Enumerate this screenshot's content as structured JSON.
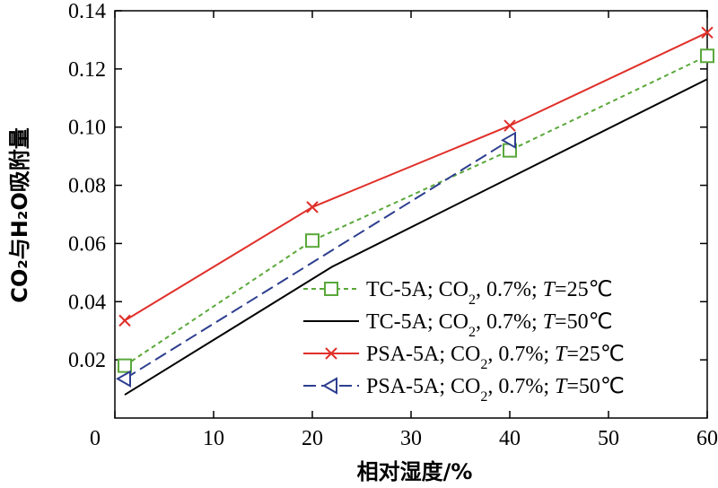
{
  "chart_data": {
    "type": "line",
    "title": "",
    "xlabel": "相对湿度/%",
    "ylabel": "CO₂与H₂O吸附量",
    "xlim": [
      0,
      60
    ],
    "ylim": [
      0,
      0.14
    ],
    "xticks": [
      0,
      10,
      20,
      30,
      40,
      50,
      60
    ],
    "yticks": [
      0.02,
      0.04,
      0.06,
      0.08,
      0.1,
      0.12,
      0.14
    ],
    "ytick_labels": [
      "0.02",
      "0.04",
      "0.06",
      "0.08",
      "0.10",
      "0.12",
      "0.14"
    ],
    "xtick_labels": [
      "0",
      "10",
      "20",
      "30",
      "40",
      "50",
      "60"
    ],
    "legend_position": "bottom-right",
    "series": [
      {
        "name": "TC-5A; CO₂, 0.7%; T=25℃",
        "label_parts": [
          "TC-5A; CO",
          "2",
          ", 0.7%; ",
          "T",
          "=25℃"
        ],
        "color": "#5aa83a",
        "dash": "5,4",
        "marker": "square",
        "x": [
          1,
          20,
          40,
          60
        ],
        "y": [
          0.018,
          0.061,
          0.092,
          0.1245
        ]
      },
      {
        "name": "TC-5A; CO₂, 0.7%; T=50℃",
        "label_parts": [
          "TC-5A; CO",
          "2",
          ", 0.7%; ",
          "T",
          "=50℃"
        ],
        "color": "#000000",
        "dash": "",
        "marker": "none",
        "x": [
          1,
          22,
          60
        ],
        "y": [
          0.008,
          0.052,
          0.1165
        ]
      },
      {
        "name": "PSA-5A; CO₂, 0.7%; T=25℃",
        "label_parts": [
          "PSA-5A; CO",
          "2",
          ", 0.7%; ",
          "T",
          "=25℃"
        ],
        "color": "#e0302a",
        "dash": "",
        "marker": "x",
        "x": [
          1,
          20,
          40,
          60
        ],
        "y": [
          0.0335,
          0.0725,
          0.1005,
          0.1325
        ]
      },
      {
        "name": "PSA-5A; CO₂, 0.7%; T=50℃",
        "label_parts": [
          "PSA-5A; CO",
          "2",
          ", 0.7%; ",
          "T",
          "=50℃"
        ],
        "color": "#2e3f8f",
        "dash": "14,6",
        "marker": "triangle-left",
        "x": [
          1,
          40
        ],
        "y": [
          0.0135,
          0.0955
        ]
      }
    ]
  }
}
